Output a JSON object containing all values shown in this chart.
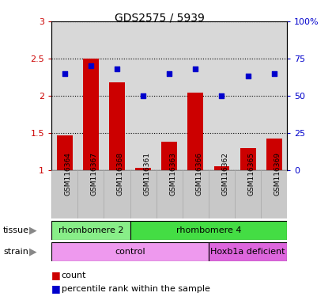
{
  "title": "GDS2575 / 5939",
  "samples": [
    "GSM116364",
    "GSM116367",
    "GSM116368",
    "GSM116361",
    "GSM116363",
    "GSM116366",
    "GSM116362",
    "GSM116365",
    "GSM116369"
  ],
  "counts": [
    1.47,
    2.5,
    2.18,
    1.03,
    1.38,
    2.04,
    1.05,
    1.3,
    1.43
  ],
  "percentile_ranks": [
    65,
    70,
    68,
    50,
    65,
    68,
    50,
    63,
    65
  ],
  "bar_color": "#cc0000",
  "dot_color": "#0000cc",
  "ylim_left": [
    1,
    3
  ],
  "ylim_right": [
    0,
    100
  ],
  "yticks_left": [
    1.0,
    1.5,
    2.0,
    2.5,
    3.0
  ],
  "ytick_labels_left": [
    "1",
    "1.5",
    "2",
    "2.5",
    "3"
  ],
  "yticks_right": [
    0,
    25,
    50,
    75,
    100
  ],
  "ytick_labels_right": [
    "0",
    "25",
    "50",
    "75",
    "100%"
  ],
  "tissue_groups": [
    {
      "label": "rhombomere 2",
      "start": 0,
      "end": 3,
      "color": "#88ee88"
    },
    {
      "label": "rhombomere 4",
      "start": 3,
      "end": 9,
      "color": "#44dd44"
    }
  ],
  "strain_groups": [
    {
      "label": "control",
      "start": 0,
      "end": 6,
      "color": "#ee99ee"
    },
    {
      "label": "Hoxb1a deficient",
      "start": 6,
      "end": 9,
      "color": "#dd66dd"
    }
  ],
  "legend_count_label": "count",
  "legend_pct_label": "percentile rank within the sample",
  "bg_color": "#ffffff",
  "plot_bg_color": "#d8d8d8",
  "xtick_bg_color": "#c8c8c8"
}
